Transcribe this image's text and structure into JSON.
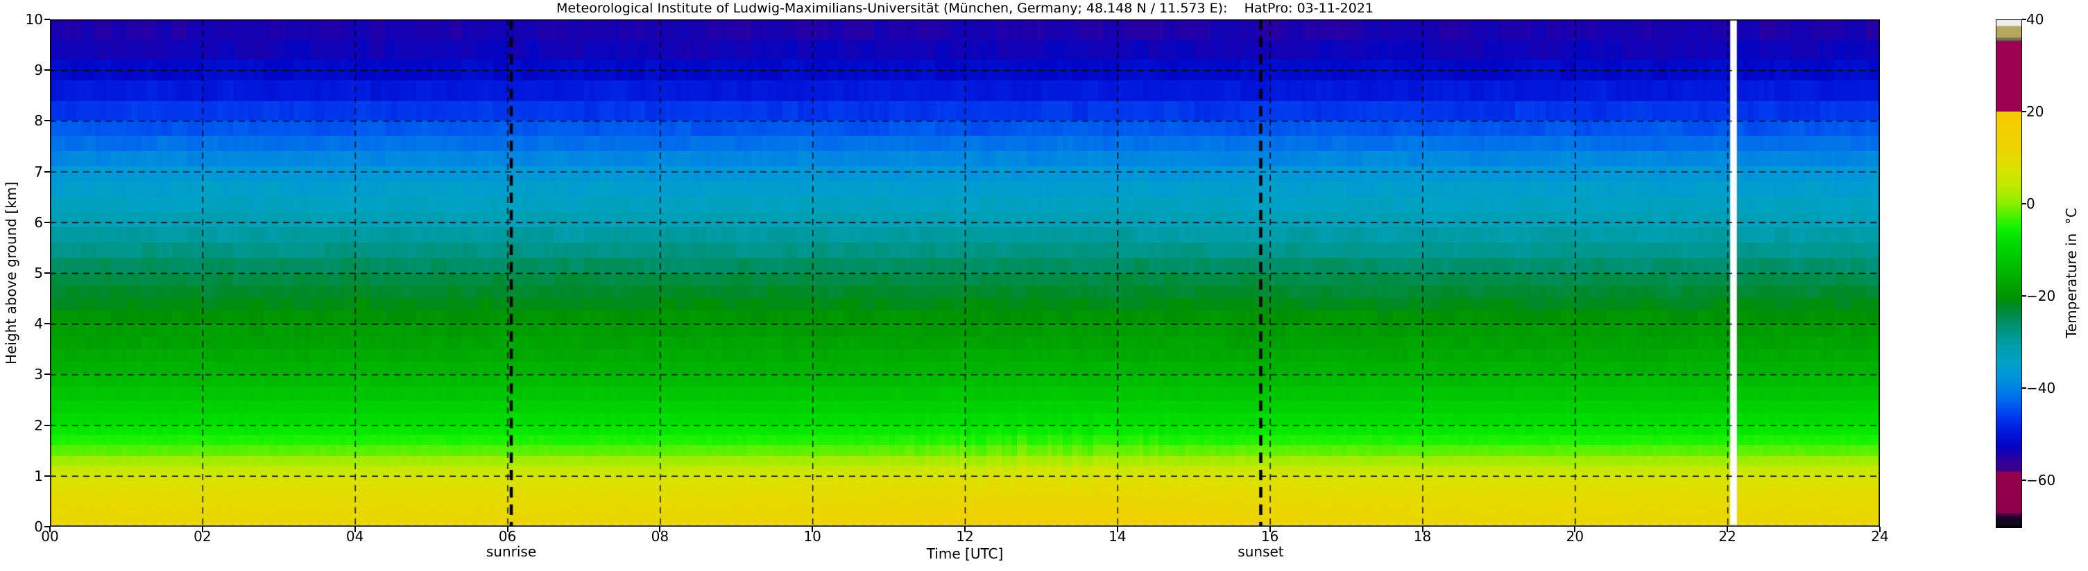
{
  "chart_data": {
    "type": "heatmap",
    "title": "Meteorological Institute of Ludwig-Maximilians-Universität (München, Germany; 48.148 N / 11.573 E):    HatPro: 03-11-2021",
    "xlabel": "Time [UTC]",
    "ylabel": "Height above ground [km]",
    "colorbar_label": "Temperature in  °C",
    "x_range_hours": [
      0,
      24
    ],
    "y_range_km": [
      0,
      10
    ],
    "temp_range_c": [
      -70,
      40
    ],
    "grid": true,
    "x_ticks": [
      "00",
      "02",
      "04",
      "06",
      "08",
      "10",
      "12",
      "14",
      "16",
      "18",
      "20",
      "22",
      "24"
    ],
    "y_ticks": [
      "0",
      "1",
      "2",
      "3",
      "4",
      "5",
      "6",
      "7",
      "8",
      "9",
      "10"
    ],
    "colorbar_ticks": [
      {
        "value": 40,
        "label": "40"
      },
      {
        "value": 20,
        "label": "20"
      },
      {
        "value": 0,
        "label": "0"
      },
      {
        "value": -20,
        "label": "−20"
      },
      {
        "value": -40,
        "label": "−40"
      },
      {
        "value": -60,
        "label": "−60"
      }
    ],
    "sunrise": {
      "label": "sunrise",
      "hour_utc": 6.05
    },
    "sunset": {
      "label": "sunset",
      "hour_utc": 15.88
    },
    "data_gap": {
      "hour_utc": 22.06,
      "width_hours": 0.05
    },
    "profile": {
      "heights_km": [
        0,
        0.25,
        0.5,
        0.75,
        1.0,
        1.25,
        1.5,
        1.75,
        2.0,
        2.5,
        3.0,
        3.5,
        4.0,
        4.5,
        5.0,
        5.5,
        6.0,
        6.5,
        7.0,
        7.5,
        8.0,
        8.5,
        9.0,
        9.5,
        10.0
      ],
      "temps_c": [
        12.5,
        11.6,
        10.4,
        8.8,
        6.8,
        2.5,
        -2.0,
        -5.2,
        -7.5,
        -11.0,
        -14.5,
        -17.0,
        -19.0,
        -21.5,
        -24.0,
        -28.0,
        -31.5,
        -34.0,
        -37.0,
        -41.0,
        -45.0,
        -48.5,
        -51.5,
        -53.5,
        -54.5
      ]
    },
    "diurnal": {
      "surface_amplitude_c": 3.5,
      "peak_hour_utc": 13.2,
      "width_hours": 2.8,
      "decay_height_km": 0.9
    },
    "texture": {
      "level_grid": [
        [
          0,
          1,
          0.1
        ],
        [
          1,
          2,
          0.2
        ],
        [
          2,
          5,
          0.25
        ],
        [
          5,
          8,
          0.3
        ],
        [
          8,
          10,
          0.4
        ]
      ],
      "time_step_minutes": 4,
      "low_noise_c": 0.35,
      "streak_noise_c": 1.3,
      "upper_noise_c": 0.7,
      "afternoon_midlevel_cooling_c": 0.8,
      "midlevel_center_km": 5.2
    },
    "colormap_stops": [
      [
        40,
        "#ededeb"
      ],
      [
        38.9,
        "#ededeb"
      ],
      [
        38.6,
        "#b9a75c"
      ],
      [
        36.4,
        "#b9a75c"
      ],
      [
        36.1,
        "#70744f"
      ],
      [
        35.7,
        "#70744f"
      ],
      [
        35.4,
        "#9c0152"
      ],
      [
        20.4,
        "#9c0152"
      ],
      [
        20.2,
        "#f7ca00"
      ],
      [
        14,
        "#efd300"
      ],
      [
        10,
        "#e5db00"
      ],
      [
        7,
        "#d7e400"
      ],
      [
        4,
        "#bdea00"
      ],
      [
        1,
        "#98ee00"
      ],
      [
        -2,
        "#56f200"
      ],
      [
        -5,
        "#10f200"
      ],
      [
        -8,
        "#00dd00"
      ],
      [
        -12,
        "#00c500"
      ],
      [
        -16,
        "#00ad00"
      ],
      [
        -20,
        "#009300"
      ],
      [
        -22,
        "#008a28"
      ],
      [
        -25,
        "#008f5e"
      ],
      [
        -28,
        "#00968c"
      ],
      [
        -31,
        "#009fb0"
      ],
      [
        -34,
        "#00a2c6"
      ],
      [
        -37,
        "#0096da"
      ],
      [
        -40,
        "#0081e5"
      ],
      [
        -43,
        "#0061ee"
      ],
      [
        -46,
        "#0039ee"
      ],
      [
        -49,
        "#0019dd"
      ],
      [
        -52,
        "#0006c6"
      ],
      [
        -54,
        "#1900ae"
      ],
      [
        -55.5,
        "#31009e"
      ],
      [
        -57.6,
        "#3d0086"
      ],
      [
        -58,
        "#95004f"
      ],
      [
        -66.6,
        "#8e004a"
      ],
      [
        -67.6,
        "#1d0035"
      ],
      [
        -69.3,
        "#0b0b10"
      ],
      [
        -70,
        "#000000"
      ]
    ]
  }
}
